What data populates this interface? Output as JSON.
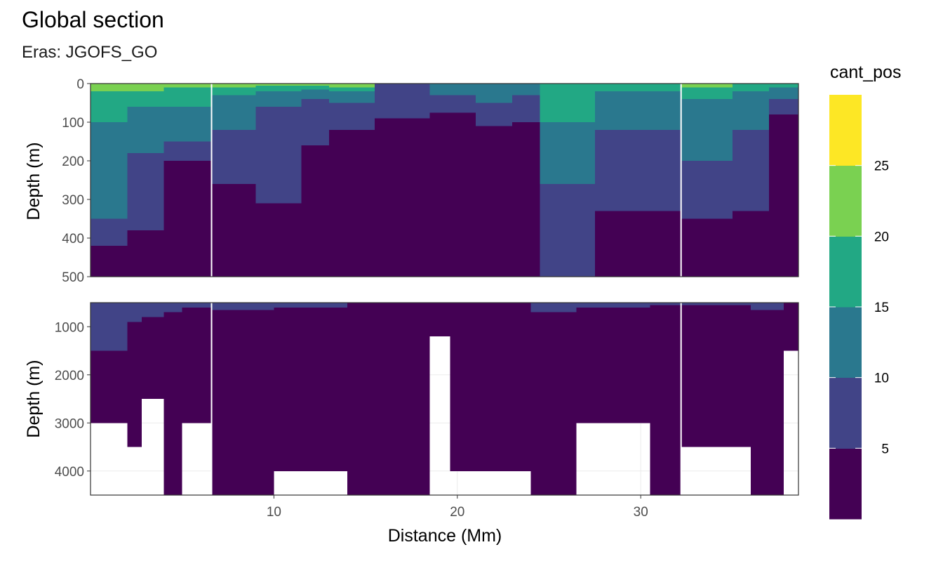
{
  "chart_data": {
    "type": "heatmap",
    "title": "Global section",
    "subtitle": "Eras: JGOFS_GO",
    "xlabel": "Distance (Mm)",
    "ylabel": "Depth (m)",
    "xlim": [
      0,
      38.6
    ],
    "x_ticks": [
      10,
      20,
      30
    ],
    "grid": true,
    "legend": {
      "title": "cant_pos",
      "placement": "right",
      "breaks": [
        5,
        10,
        15,
        20,
        25
      ],
      "bins": [
        {
          "range": "<5",
          "color": "#440154"
        },
        {
          "range": "5-10",
          "color": "#414487"
        },
        {
          "range": "10-15",
          "color": "#2A788E"
        },
        {
          "range": "15-20",
          "color": "#22A884"
        },
        {
          "range": "20-25",
          "color": "#7AD151"
        },
        {
          "range": ">25",
          "color": "#FDE725"
        }
      ]
    },
    "section_breaks_x": [
      6.6,
      32.2
    ],
    "panels": [
      {
        "name": "upper",
        "ylim": [
          500,
          0
        ],
        "y_ticks": [
          0,
          100,
          200,
          300,
          400,
          500
        ],
        "columns": [
          {
            "x0": 0.0,
            "x1": 2.0,
            "bounds": [
              20,
              100,
              350,
              420
            ],
            "bottom": 500
          },
          {
            "x0": 2.0,
            "x1": 4.0,
            "bounds": [
              20,
              60,
              180,
              380
            ],
            "bottom": 500
          },
          {
            "x0": 4.0,
            "x1": 6.6,
            "bounds": [
              10,
              60,
              150,
              200
            ],
            "bottom": 500
          },
          {
            "x0": 6.6,
            "x1": 9.0,
            "bounds": [
              10,
              30,
              120,
              260
            ],
            "bottom": 500
          },
          {
            "x0": 9.0,
            "x1": 11.5,
            "bounds": [
              5,
              20,
              60,
              310
            ],
            "bottom": 500
          },
          {
            "x0": 11.5,
            "x1": 13.0,
            "bounds": [
              5,
              15,
              40,
              160
            ],
            "bottom": 500
          },
          {
            "x0": 13.0,
            "x1": 15.5,
            "bounds": [
              10,
              20,
              50,
              120
            ],
            "bottom": 500
          },
          {
            "x0": 15.5,
            "x1": 18.5,
            "bounds": [
              0,
              0,
              0,
              0,
              90
            ],
            "bottom": 500
          },
          {
            "x0": 18.5,
            "x1": 21.0,
            "bounds": [
              0,
              0,
              0,
              30,
              75
            ],
            "bottom": 500
          },
          {
            "x0": 21.0,
            "x1": 23.0,
            "bounds": [
              0,
              0,
              0,
              50,
              110
            ],
            "bottom": 500
          },
          {
            "x0": 23.0,
            "x1": 24.5,
            "bounds": [
              0,
              0,
              30,
              100
            ],
            "bottom": 500
          },
          {
            "x0": 24.5,
            "x1": 27.5,
            "bounds": [
              0,
              100,
              260,
              500
            ],
            "bottom": 500
          },
          {
            "x0": 27.5,
            "x1": 32.2,
            "bounds": [
              0,
              20,
              120,
              330
            ],
            "bottom": 500
          },
          {
            "x0": 32.2,
            "x1": 35.0,
            "bounds": [
              10,
              40,
              200,
              350
            ],
            "bottom": 500
          },
          {
            "x0": 35.0,
            "x1": 37.0,
            "bounds": [
              0,
              20,
              120,
              330
            ],
            "bottom": 500
          },
          {
            "x0": 37.0,
            "x1": 38.6,
            "bounds": [
              10,
              40,
              80
            ],
            "bottom": 500
          }
        ]
      },
      {
        "name": "lower",
        "ylim": [
          4500,
          500
        ],
        "y_ticks": [
          1000,
          2000,
          3000,
          4000
        ],
        "columns": [
          {
            "x0": 0.0,
            "x1": 2.0,
            "bounds": [
              1500
            ],
            "bottom": 3000
          },
          {
            "x0": 2.0,
            "x1": 2.8,
            "bounds": [
              900
            ],
            "bottom": 3500
          },
          {
            "x0": 2.8,
            "x1": 4.0,
            "bounds": [
              800
            ],
            "bottom": 2500
          },
          {
            "x0": 4.0,
            "x1": 5.0,
            "bounds": [
              700
            ],
            "bottom": 4500
          },
          {
            "x0": 5.0,
            "x1": 6.6,
            "bounds": [
              600
            ],
            "bottom": 3000
          },
          {
            "x0": 6.6,
            "x1": 10.0,
            "bounds": [
              650
            ],
            "bottom": 4500
          },
          {
            "x0": 10.0,
            "x1": 14.0,
            "bounds": [
              600
            ],
            "bottom": 4000
          },
          {
            "x0": 14.0,
            "x1": 18.5,
            "bounds": [
              500
            ],
            "bottom": 4500
          },
          {
            "x0": 18.5,
            "x1": 19.6,
            "bounds": [
              500
            ],
            "bottom": 1200
          },
          {
            "x0": 19.6,
            "x1": 24.0,
            "bounds": [
              500
            ],
            "bottom": 4000
          },
          {
            "x0": 24.0,
            "x1": 26.5,
            "bounds": [
              700
            ],
            "bottom": 4500
          },
          {
            "x0": 26.5,
            "x1": 30.5,
            "bounds": [
              600
            ],
            "bottom": 3000
          },
          {
            "x0": 30.5,
            "x1": 32.2,
            "bounds": [
              550
            ],
            "bottom": 4500
          },
          {
            "x0": 32.2,
            "x1": 36.0,
            "bounds": [
              550
            ],
            "bottom": 3500
          },
          {
            "x0": 36.0,
            "x1": 37.8,
            "bounds": [
              650
            ],
            "bottom": 4500
          },
          {
            "x0": 37.8,
            "x1": 38.6,
            "bounds": [
              500
            ],
            "bottom": 1500
          }
        ]
      }
    ]
  }
}
